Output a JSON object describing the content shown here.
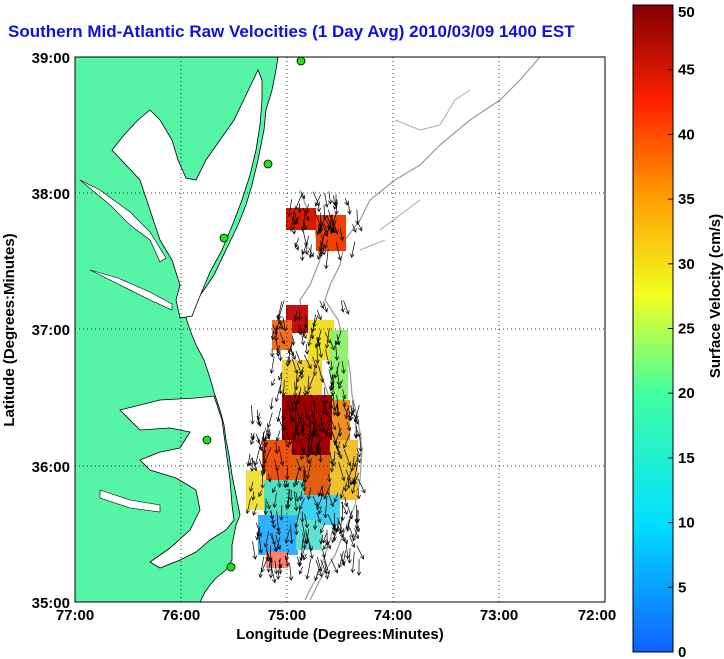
{
  "title": "Southern Mid-Atlantic Raw Velocities (1 Day Avg) 2010/03/09 1400 EST",
  "map": {
    "xlabel": "Longitude (Degrees:Minutes)",
    "ylabel": "Latitude (Degrees:Minutes)",
    "x_ticks": [
      "77:00",
      "76:00",
      "75:00",
      "74:00",
      "73:00",
      "72:00"
    ],
    "y_ticks": [
      "39:00",
      "38:00",
      "37:00",
      "36:00",
      "35:00"
    ],
    "lon_range": [
      -77,
      -72
    ],
    "lat_range": [
      35,
      39
    ],
    "land_color": "#55f5a5",
    "water_color": "#ffffff",
    "station_color": "#22dd22"
  },
  "colorbar": {
    "label": "Surface Velocity (cm/s)",
    "ticks": [
      "0",
      "5",
      "10",
      "15",
      "20",
      "25",
      "30",
      "35",
      "40",
      "45",
      "50"
    ],
    "range": [
      0,
      50
    ]
  }
}
